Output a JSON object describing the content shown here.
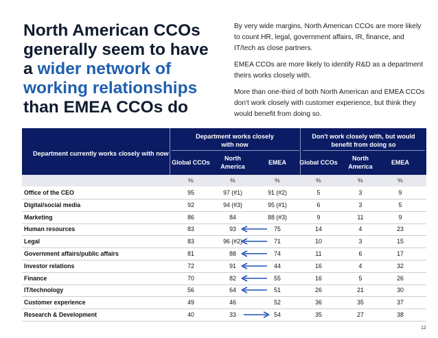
{
  "headline": {
    "line1": "North American CCOs",
    "line2": "generally seem to have",
    "line3_pre": "a ",
    "line3_accent": "wider network of",
    "line4_accent": "working relationships",
    "line5": "than EMEA CCOs do"
  },
  "notes": [
    "By very wide margins, North American CCOs are more likely to count HR, legal, government affairs, IR, finance, and IT/tech as close partners.",
    "EMEA CCOs are more likely to identify R&D as a department theirs works closely with.",
    "More than one-third of both North American and EMEA CCOs don't work closely with customer experience, but think they would benefit from doing so."
  ],
  "table": {
    "row_header": "Department currently works closely with now",
    "group1": "Department works closely with now",
    "group2": "Don't work closely with, but would benefit from doing so",
    "columns": [
      "Global CCOs",
      "North America",
      "EMEA",
      "Global CCOs",
      "North America",
      "EMEA"
    ],
    "units": [
      "%",
      "%",
      "%",
      "%",
      "%",
      "%"
    ],
    "rows": [
      {
        "label": "Office of the CEO",
        "values": [
          "95",
          "97 (#1)",
          "91 (#2)",
          "5",
          "3",
          "9"
        ],
        "arrow": ""
      },
      {
        "label": "Digital/social media",
        "values": [
          "92",
          "94 (#3)",
          "95 (#1)",
          "6",
          "3",
          "5"
        ],
        "arrow": ""
      },
      {
        "label": "Marketing",
        "values": [
          "86",
          "84",
          "88 (#3)",
          "9",
          "11",
          "9"
        ],
        "arrow": ""
      },
      {
        "label": "Human resources",
        "values": [
          "83",
          "93",
          "75",
          "14",
          "4",
          "23"
        ],
        "arrow": "left"
      },
      {
        "label": "Legal",
        "values": [
          "83",
          "96 (#2)",
          "71",
          "10",
          "3",
          "15"
        ],
        "arrow": "left"
      },
      {
        "label": "Government affairs/public affairs",
        "values": [
          "81",
          "88",
          "74",
          "11",
          "6",
          "17"
        ],
        "arrow": "left"
      },
      {
        "label": "Investor relations",
        "values": [
          "72",
          "91",
          "44",
          "16",
          "4",
          "32"
        ],
        "arrow": "left"
      },
      {
        "label": "Finance",
        "values": [
          "70",
          "82",
          "55",
          "16",
          "5",
          "26"
        ],
        "arrow": "left"
      },
      {
        "label": "IT/technology",
        "values": [
          "56",
          "64",
          "51",
          "26",
          "21",
          "30"
        ],
        "arrow": "left"
      },
      {
        "label": "Customer experience",
        "values": [
          "49",
          "46",
          "52",
          "36",
          "35",
          "37"
        ],
        "arrow": ""
      },
      {
        "label": "Research & Development",
        "values": [
          "40",
          "33",
          "54",
          "35",
          "27",
          "38"
        ],
        "arrow": "right"
      }
    ]
  },
  "page_number": "12",
  "colors": {
    "navy": "#0b1c64",
    "accent": "#1f5fae",
    "arrow": "#1f4fb5"
  }
}
